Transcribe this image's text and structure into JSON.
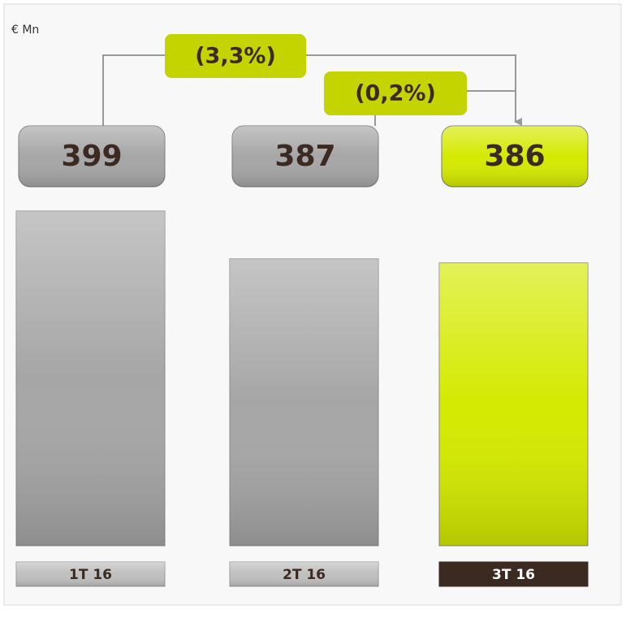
{
  "chart_data": {
    "type": "bar",
    "unit_label": "€ Mn",
    "categories": [
      "1T 16",
      "2T 16",
      "3T 16"
    ],
    "values": [
      399,
      387,
      386
    ],
    "colors": [
      "#a6a6a6",
      "#a6a6a6",
      "#d4ea00"
    ],
    "ylim": [
      315,
      400
    ],
    "annotations": [
      "(3,3%)",
      "(0,2%)"
    ]
  }
}
